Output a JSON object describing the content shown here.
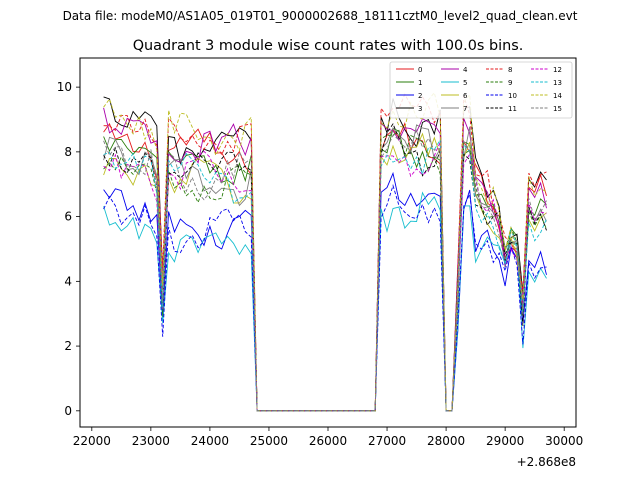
{
  "suptitle": "Data file: modeM0/AS1A05_019T01_9000002688_18111cztM0_level2_quad_clean.evt",
  "chart_data": {
    "type": "line",
    "title": "Quadrant 3 module wise count rates with 100.0s bins.",
    "xlabel": "",
    "ylabel": "",
    "x_offset_label": "+2.868e8",
    "xlim": [
      21800,
      30200
    ],
    "ylim": [
      -0.5,
      10.9
    ],
    "xticks": [
      22000,
      23000,
      24000,
      25000,
      26000,
      27000,
      28000,
      29000,
      30000
    ],
    "xtick_labels": [
      "22000",
      "23000",
      "24000",
      "25000",
      "26000",
      "27000",
      "28000",
      "29000",
      "30000"
    ],
    "yticks": [
      0,
      2,
      4,
      6,
      8,
      10
    ],
    "ytick_labels": [
      "0",
      "2",
      "4",
      "6",
      "8",
      "10"
    ],
    "legend_position": "top-right",
    "legend_columns": 4,
    "x_segments": [
      {
        "start": 22200,
        "end": 24800
      },
      {
        "start": 24800,
        "end": 26800,
        "zero": true
      },
      {
        "start": 26800,
        "end": 28000
      },
      {
        "start": 28000,
        "end": 28200,
        "zero": true
      },
      {
        "start": 28200,
        "end": 29700
      }
    ],
    "series": [
      {
        "name": "0",
        "color": "#e41a1c",
        "dash": false,
        "levels": [
          8.5,
          8.0,
          8.2,
          7.7
        ]
      },
      {
        "name": "1",
        "color": "#2a7d0b",
        "dash": false,
        "levels": [
          8.3,
          7.6,
          8.0,
          7.0
        ]
      },
      {
        "name": "2",
        "color": "#0000ee",
        "dash": false,
        "levels": [
          6.6,
          5.7,
          6.5,
          5.4
        ]
      },
      {
        "name": "3",
        "color": "#000000",
        "dash": false,
        "levels": [
          9.4,
          8.3,
          8.8,
          7.9
        ]
      },
      {
        "name": "4",
        "color": "#aa00aa",
        "dash": false,
        "levels": [
          9.0,
          8.1,
          8.7,
          7.6
        ]
      },
      {
        "name": "5",
        "color": "#17becf",
        "dash": false,
        "levels": [
          5.9,
          5.1,
          6.2,
          5.0
        ]
      },
      {
        "name": "6",
        "color": "#bcbd22",
        "dash": false,
        "levels": [
          7.7,
          7.1,
          7.9,
          6.6
        ]
      },
      {
        "name": "7",
        "color": "#7f7f7f",
        "dash": false,
        "levels": [
          8.1,
          7.1,
          8.1,
          6.9
        ]
      },
      {
        "name": "8",
        "color": "#e41a1c",
        "dash": true,
        "levels": [
          9.1,
          8.4,
          9.2,
          8.0
        ]
      },
      {
        "name": "9",
        "color": "#2a7d0b",
        "dash": true,
        "levels": [
          7.7,
          7.0,
          8.0,
          6.8
        ]
      },
      {
        "name": "10",
        "color": "#0000ee",
        "dash": true,
        "levels": [
          6.4,
          5.6,
          6.2,
          5.2
        ]
      },
      {
        "name": "11",
        "color": "#000000",
        "dash": true,
        "levels": [
          8.0,
          7.4,
          8.0,
          6.9
        ]
      },
      {
        "name": "12",
        "color": "#cc00cc",
        "dash": true,
        "levels": [
          7.6,
          7.2,
          7.9,
          7.0
        ]
      },
      {
        "name": "13",
        "color": "#17becf",
        "dash": true,
        "levels": [
          7.9,
          7.2,
          7.7,
          6.4
        ]
      },
      {
        "name": "14",
        "color": "#bcbd22",
        "dash": true,
        "levels": [
          9.3,
          8.5,
          9.2,
          7.8
        ]
      },
      {
        "name": "15",
        "color": "#7f7f7f",
        "dash": true,
        "levels": [
          8.2,
          7.3,
          8.2,
          7.1
        ]
      }
    ]
  }
}
